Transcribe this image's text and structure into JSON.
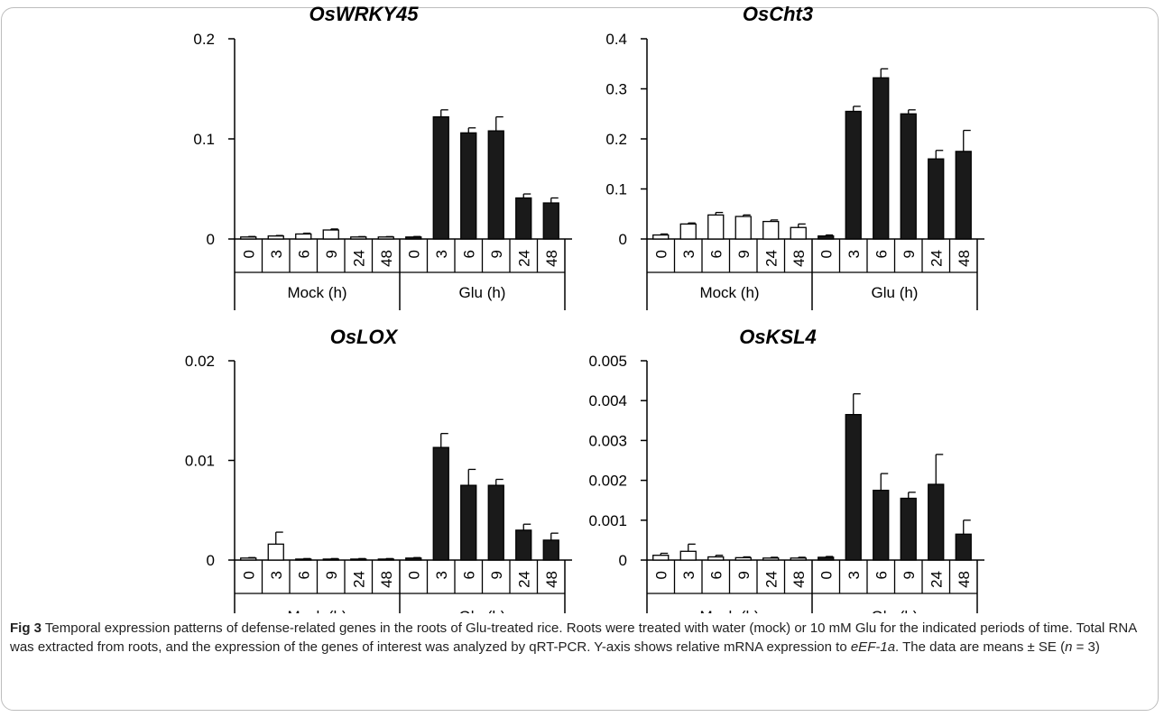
{
  "figure": {
    "caption": {
      "label": "Fig 3",
      "text_1": "Temporal expression patterns of defense-related genes in the roots of Glu-treated rice. Roots were treated with water (mock) or 10 mM Glu for the indicated periods of time. Total RNA was extracted from roots, and the expression of the genes of interest was analyzed by qRT-PCR. Y-axis shows relative mRNA expression to ",
      "gene_ref": "eEF-1a",
      "text_2": ". The data are means ± SE (",
      "n_var": "n",
      "text_3": " = 3)"
    },
    "colors": {
      "mock": "#ffffff",
      "glu": "#1a1a1a",
      "axis": "#000000"
    }
  },
  "chart_data": [
    {
      "type": "bar",
      "title": "OsWRKY45",
      "ylim": [
        0,
        0.2
      ],
      "yticks": [
        "0",
        "0.1",
        "0.2"
      ],
      "groups": [
        {
          "label": "Mock (h)",
          "categories": [
            "0",
            "3",
            "6",
            "9",
            "24",
            "48"
          ],
          "values": [
            0.002,
            0.003,
            0.005,
            0.009,
            0.002,
            0.002
          ],
          "errors": [
            0.0005,
            0.0005,
            0.0008,
            0.001,
            0.0004,
            0.0004
          ]
        },
        {
          "label": "Glu (h)",
          "categories": [
            "0",
            "3",
            "6",
            "9",
            "24",
            "48"
          ],
          "values": [
            0.002,
            0.122,
            0.106,
            0.108,
            0.041,
            0.036
          ],
          "errors": [
            0.0005,
            0.007,
            0.005,
            0.014,
            0.004,
            0.005
          ]
        }
      ]
    },
    {
      "type": "bar",
      "title": "OsCht3",
      "ylim": [
        0,
        0.4
      ],
      "yticks": [
        "0",
        "0.1",
        "0.2",
        "0.3",
        "0.4"
      ],
      "groups": [
        {
          "label": "Mock (h)",
          "categories": [
            "0",
            "3",
            "6",
            "9",
            "24",
            "48"
          ],
          "values": [
            0.008,
            0.03,
            0.048,
            0.045,
            0.035,
            0.023
          ],
          "errors": [
            0.002,
            0.002,
            0.005,
            0.003,
            0.003,
            0.007
          ]
        },
        {
          "label": "Glu (h)",
          "categories": [
            "0",
            "3",
            "6",
            "9",
            "24",
            "48"
          ],
          "values": [
            0.006,
            0.255,
            0.322,
            0.25,
            0.16,
            0.175
          ],
          "errors": [
            0.002,
            0.01,
            0.018,
            0.008,
            0.017,
            0.042
          ]
        }
      ]
    },
    {
      "type": "bar",
      "title": "OsLOX",
      "ylim": [
        0,
        0.02
      ],
      "yticks": [
        "0",
        "0.01",
        "0.02"
      ],
      "groups": [
        {
          "label": "Mock (h)",
          "categories": [
            "0",
            "3",
            "6",
            "9",
            "24",
            "48"
          ],
          "values": [
            0.0002,
            0.0016,
            0.0001,
            0.0001,
            0.0001,
            0.0001
          ],
          "errors": [
            5e-05,
            0.0012,
            5e-05,
            5e-05,
            5e-05,
            5e-05
          ]
        },
        {
          "label": "Glu (h)",
          "categories": [
            "0",
            "3",
            "6",
            "9",
            "24",
            "48"
          ],
          "values": [
            0.0002,
            0.0113,
            0.0075,
            0.0075,
            0.003,
            0.002
          ],
          "errors": [
            5e-05,
            0.0014,
            0.0016,
            0.0006,
            0.0006,
            0.0007
          ]
        }
      ]
    },
    {
      "type": "bar",
      "title": "OsKSL4",
      "ylim": [
        0,
        0.005
      ],
      "yticks": [
        "0",
        "0.001",
        "0.002",
        "0.003",
        "0.004",
        "0.005"
      ],
      "groups": [
        {
          "label": "Mock (h)",
          "categories": [
            "0",
            "3",
            "6",
            "9",
            "24",
            "48"
          ],
          "values": [
            0.00012,
            0.00022,
            8e-05,
            6e-05,
            5e-05,
            5e-05
          ],
          "errors": [
            5e-05,
            0.00018,
            4e-05,
            2e-05,
            2e-05,
            2e-05
          ]
        },
        {
          "label": "Glu (h)",
          "categories": [
            "0",
            "3",
            "6",
            "9",
            "24",
            "48"
          ],
          "values": [
            7e-05,
            0.00365,
            0.00175,
            0.00155,
            0.0019,
            0.00065
          ],
          "errors": [
            2e-05,
            0.00052,
            0.00042,
            0.00015,
            0.00075,
            0.00035
          ]
        }
      ]
    }
  ]
}
